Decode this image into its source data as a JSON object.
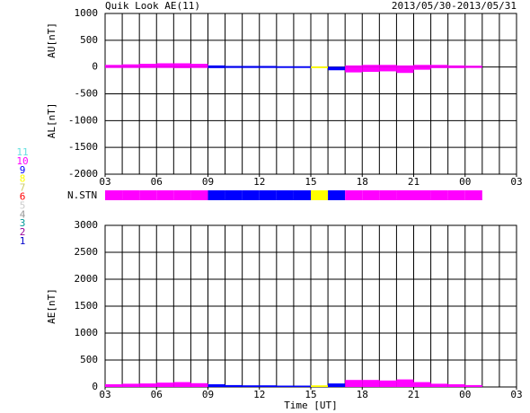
{
  "title": "Quik Look AE(11)",
  "date_range": "2013/05/30-2013/05/31",
  "chart_data": [
    {
      "type": "bar",
      "ylabels": [
        "AU[nT]",
        "AL[nT]"
      ],
      "xlim": [
        0,
        24
      ],
      "xgrid_step": 1,
      "xticks": [
        {
          "value": 0,
          "label": "03"
        },
        {
          "value": 3,
          "label": "06"
        },
        {
          "value": 6,
          "label": "09"
        },
        {
          "value": 9,
          "label": "12"
        },
        {
          "value": 12,
          "label": "15"
        },
        {
          "value": 15,
          "label": "18"
        },
        {
          "value": 18,
          "label": "21"
        },
        {
          "value": 21,
          "label": "00"
        },
        {
          "value": 24,
          "label": "03"
        }
      ],
      "ylim": [
        -2000,
        1000
      ],
      "yticks": [
        -2000,
        -1500,
        -1000,
        -500,
        0,
        500,
        1000
      ],
      "x": [
        0,
        1,
        2,
        3,
        4,
        5,
        6,
        7,
        8,
        9,
        10,
        11,
        12,
        13,
        14,
        15,
        16,
        17,
        18,
        19,
        20,
        21
      ],
      "series": [
        {
          "values": [
            40,
            50,
            60,
            70,
            70,
            60,
            30,
            20,
            20,
            20,
            15,
            15,
            10,
            5,
            30,
            40,
            40,
            30,
            40,
            40,
            30,
            25
          ]
        },
        {
          "values": [
            -10,
            -10,
            -5,
            -10,
            -20,
            -10,
            -20,
            -15,
            -10,
            -10,
            -10,
            -10,
            -20,
            -60,
            -100,
            -90,
            -80,
            -110,
            -50,
            -20,
            -20,
            -10
          ]
        }
      ]
    },
    {
      "type": "bar",
      "ylabels": [
        "AE[nT]"
      ],
      "xlabel": "Time [UT]",
      "xlim": [
        0,
        24
      ],
      "xgrid_step": 1,
      "xticks": [
        {
          "value": 0,
          "label": "03"
        },
        {
          "value": 3,
          "label": "06"
        },
        {
          "value": 6,
          "label": "09"
        },
        {
          "value": 9,
          "label": "12"
        },
        {
          "value": 12,
          "label": "15"
        },
        {
          "value": 15,
          "label": "18"
        },
        {
          "value": 18,
          "label": "21"
        },
        {
          "value": 21,
          "label": "00"
        },
        {
          "value": 24,
          "label": "03"
        }
      ],
      "ylim": [
        0,
        3000
      ],
      "yticks": [
        0,
        500,
        1000,
        1500,
        2000,
        2500,
        3000
      ],
      "x": [
        0,
        1,
        2,
        3,
        4,
        5,
        6,
        7,
        8,
        9,
        10,
        11,
        12,
        13,
        14,
        15,
        16,
        17,
        18,
        19,
        20,
        21
      ],
      "series": [
        {
          "values": [
            50,
            60,
            65,
            80,
            90,
            70,
            50,
            35,
            30,
            30,
            25,
            25,
            30,
            65,
            130,
            130,
            120,
            140,
            90,
            60,
            50,
            35
          ]
        }
      ]
    }
  ],
  "nstn": {
    "label": "N.STN",
    "xlim": [
      0,
      24
    ],
    "x": [
      0,
      1,
      2,
      3,
      4,
      5,
      6,
      7,
      8,
      9,
      10,
      11,
      12,
      13,
      14,
      15,
      16,
      17,
      18,
      19,
      20,
      21
    ],
    "values": [
      10,
      10,
      10,
      10,
      10,
      10,
      9,
      9,
      9,
      9,
      9,
      9,
      8,
      9,
      10,
      10,
      10,
      10,
      10,
      10,
      10,
      10
    ],
    "legend": [
      {
        "value": 11,
        "color": "#66e0e0"
      },
      {
        "value": 10,
        "color": "#ff00ff"
      },
      {
        "value": 9,
        "color": "#0000ff"
      },
      {
        "value": 8,
        "color": "#ffff00"
      },
      {
        "value": 7,
        "color": "#cccc66"
      },
      {
        "value": 6,
        "color": "#ff0000"
      },
      {
        "value": 5,
        "color": "#cccccc"
      },
      {
        "value": 4,
        "color": "#999999"
      },
      {
        "value": 3,
        "color": "#009999"
      },
      {
        "value": 2,
        "color": "#990099"
      },
      {
        "value": 1,
        "color": "#0000cc"
      }
    ]
  }
}
